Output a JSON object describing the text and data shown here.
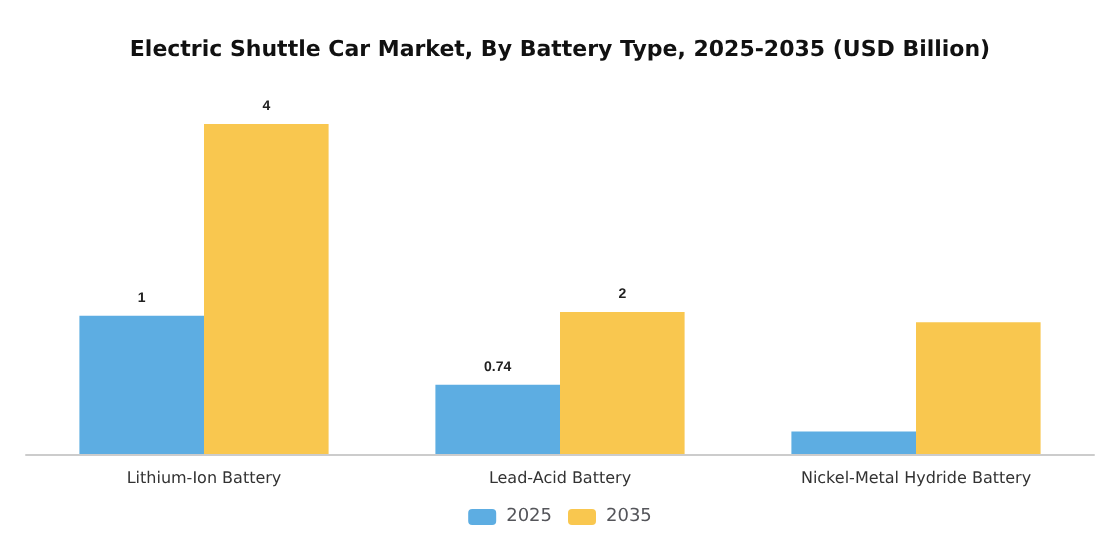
{
  "chart_data": {
    "type": "bar",
    "title": "Electric Shuttle Car Market, By Battery Type, 2025-2035 (USD Billion)",
    "categories": [
      "Lithium-Ion Battery",
      "Lead-Acid Battery",
      "Nickel-Metal Hydride Battery"
    ],
    "series": [
      {
        "name": "2025",
        "color": "#5dade2",
        "values": [
          1.48,
          0.74,
          0.24
        ],
        "value_labels": [
          "1",
          "0.74",
          null
        ]
      },
      {
        "name": "2035",
        "color": "#f9c74f",
        "values": [
          3.53,
          1.52,
          1.41
        ],
        "value_labels": [
          "4",
          "2",
          null
        ]
      }
    ],
    "legend": "bottom",
    "grid": false
  }
}
